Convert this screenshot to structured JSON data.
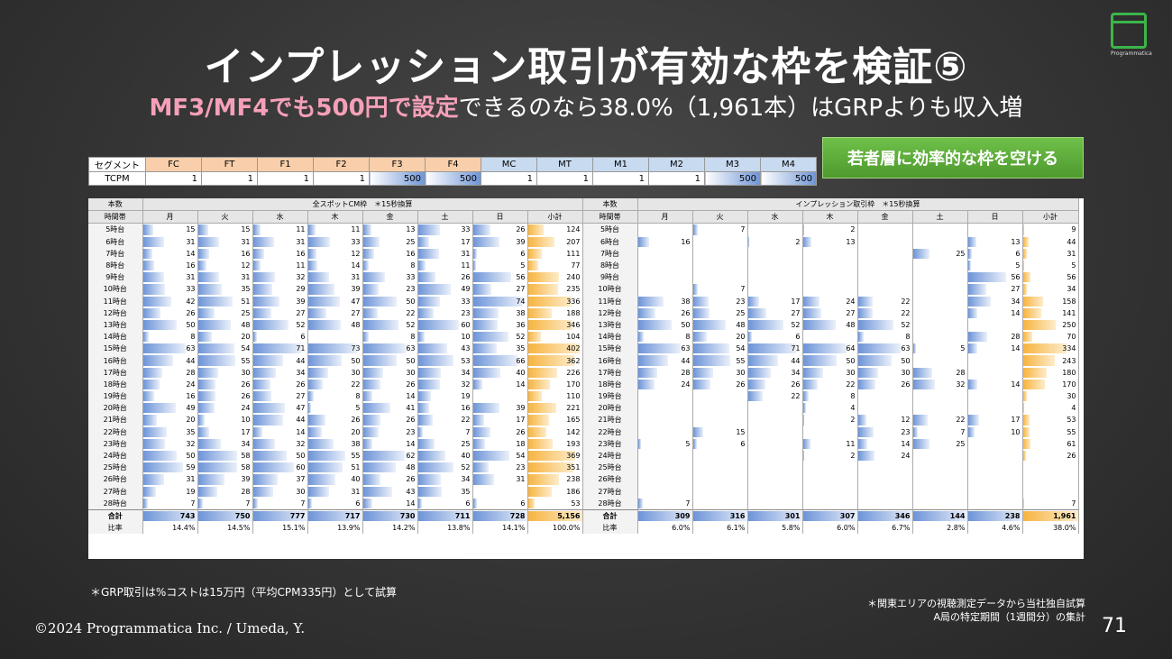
{
  "title": "インプレッション取引が有効な枠を検証⑤",
  "subtitle_pink": "MF3/MF4でも500円で設定",
  "subtitle_rest": "できるのなら38.0%（1,961本）はGRPよりも収入増",
  "logo_text": "Programmatica",
  "callout": "若者層に効率的な枠を空ける",
  "segment": {
    "label": "セグメント",
    "names": [
      "FC",
      "FT",
      "F1",
      "F2",
      "F3",
      "F4",
      "MC",
      "MT",
      "M1",
      "M2",
      "M3",
      "M4"
    ],
    "tcpm_label": "TCPM",
    "tcpm": [
      "1",
      "1",
      "1",
      "1",
      "500",
      "500",
      "1",
      "1",
      "1",
      "1",
      "500",
      "500"
    ]
  },
  "table": {
    "count_label": "本数",
    "time_label": "時間帯",
    "left_title": "全スポットCM枠　＊15秒換算",
    "right_title": "インプレッション取引枠　＊15秒換算",
    "days": [
      "月",
      "火",
      "水",
      "木",
      "金",
      "土",
      "日",
      "小計"
    ],
    "times": [
      "5時台",
      "6時台",
      "7時台",
      "8時台",
      "9時台",
      "10時台",
      "11時台",
      "12時台",
      "13時台",
      "14時台",
      "15時台",
      "16時台",
      "17時台",
      "18時台",
      "19時台",
      "20時台",
      "21時台",
      "22時台",
      "23時台",
      "24時台",
      "25時台",
      "26時台",
      "27時台",
      "28時台"
    ],
    "left_rows": [
      [
        15,
        15,
        11,
        11,
        13,
        33,
        26,
        124
      ],
      [
        31,
        31,
        31,
        33,
        25,
        17,
        39,
        207
      ],
      [
        14,
        16,
        16,
        12,
        16,
        31,
        6,
        111
      ],
      [
        16,
        12,
        11,
        14,
        8,
        11,
        5,
        77
      ],
      [
        31,
        31,
        32,
        31,
        33,
        26,
        56,
        240
      ],
      [
        33,
        35,
        29,
        39,
        23,
        49,
        27,
        235
      ],
      [
        42,
        51,
        39,
        47,
        50,
        33,
        74,
        336
      ],
      [
        26,
        25,
        27,
        27,
        22,
        23,
        38,
        188
      ],
      [
        50,
        48,
        52,
        48,
        52,
        60,
        36,
        346
      ],
      [
        8,
        20,
        6,
        null,
        8,
        10,
        52,
        104
      ],
      [
        63,
        54,
        71,
        73,
        63,
        43,
        35,
        402
      ],
      [
        44,
        55,
        44,
        50,
        50,
        53,
        66,
        362
      ],
      [
        28,
        30,
        34,
        30,
        30,
        34,
        40,
        226
      ],
      [
        24,
        26,
        26,
        22,
        26,
        32,
        14,
        170
      ],
      [
        16,
        26,
        27,
        8,
        14,
        19,
        null,
        110
      ],
      [
        49,
        24,
        47,
        5,
        41,
        16,
        39,
        221
      ],
      [
        20,
        10,
        44,
        26,
        26,
        22,
        17,
        165
      ],
      [
        35,
        17,
        14,
        20,
        23,
        7,
        26,
        142
      ],
      [
        32,
        34,
        32,
        38,
        14,
        25,
        18,
        193
      ],
      [
        50,
        58,
        50,
        55,
        62,
        40,
        54,
        369
      ],
      [
        59,
        58,
        60,
        51,
        48,
        52,
        23,
        351
      ],
      [
        31,
        39,
        37,
        40,
        26,
        34,
        31,
        238
      ],
      [
        19,
        28,
        30,
        31,
        43,
        35,
        null,
        186
      ],
      [
        7,
        7,
        7,
        6,
        14,
        6,
        6,
        53
      ]
    ],
    "right_rows": [
      [
        null,
        7,
        null,
        2,
        null,
        null,
        null,
        9
      ],
      [
        16,
        null,
        2,
        13,
        null,
        null,
        13,
        44
      ],
      [
        null,
        null,
        null,
        null,
        null,
        25,
        6,
        31
      ],
      [
        null,
        null,
        null,
        null,
        null,
        null,
        5,
        5
      ],
      [
        null,
        null,
        null,
        null,
        null,
        null,
        56,
        56
      ],
      [
        null,
        7,
        null,
        null,
        null,
        null,
        27,
        34
      ],
      [
        38,
        23,
        17,
        24,
        22,
        null,
        34,
        158
      ],
      [
        26,
        25,
        27,
        27,
        22,
        null,
        14,
        141
      ],
      [
        50,
        48,
        52,
        48,
        52,
        null,
        null,
        250
      ],
      [
        8,
        20,
        6,
        null,
        8,
        null,
        28,
        70
      ],
      [
        63,
        54,
        71,
        64,
        63,
        5,
        14,
        334
      ],
      [
        44,
        55,
        44,
        50,
        50,
        null,
        null,
        243
      ],
      [
        28,
        30,
        34,
        30,
        30,
        28,
        null,
        180
      ],
      [
        24,
        26,
        26,
        22,
        26,
        32,
        14,
        170
      ],
      [
        null,
        null,
        22,
        8,
        null,
        null,
        null,
        30
      ],
      [
        null,
        null,
        null,
        4,
        null,
        null,
        null,
        4
      ],
      [
        null,
        null,
        null,
        2,
        12,
        22,
        17,
        53
      ],
      [
        null,
        15,
        null,
        null,
        23,
        7,
        10,
        55
      ],
      [
        5,
        6,
        null,
        11,
        14,
        25,
        null,
        61
      ],
      [
        null,
        null,
        null,
        2,
        24,
        null,
        null,
        26
      ],
      [
        null,
        null,
        null,
        null,
        null,
        null,
        null,
        null
      ],
      [
        null,
        null,
        null,
        null,
        null,
        null,
        null,
        null
      ],
      [
        null,
        null,
        null,
        null,
        null,
        null,
        null,
        null
      ],
      [
        7,
        null,
        null,
        null,
        null,
        null,
        null,
        7
      ]
    ],
    "total_label": "合計",
    "ratio_label": "比率",
    "left_total": [
      "743",
      "750",
      "777",
      "717",
      "730",
      "711",
      "728",
      "5,156"
    ],
    "left_ratio": [
      "14.4%",
      "14.5%",
      "15.1%",
      "13.9%",
      "14.2%",
      "13.8%",
      "14.1%",
      "100.0%"
    ],
    "right_total": [
      "309",
      "316",
      "301",
      "307",
      "346",
      "144",
      "238",
      "1,961"
    ],
    "right_ratio": [
      "6.0%",
      "6.1%",
      "5.8%",
      "6.0%",
      "6.7%",
      "2.8%",
      "4.6%",
      "38.0%"
    ]
  },
  "note_left": "＊GRP取引は%コストは15万円（平均CPM335円）として試算",
  "note_right_1": "＊関東エリアの視聴測定データから当社独自試算",
  "note_right_2": "A局の特定期間（1週間分）の集計",
  "copyright": "©2024  Programmatica Inc. / Umeda, Y.",
  "page_number": "71"
}
